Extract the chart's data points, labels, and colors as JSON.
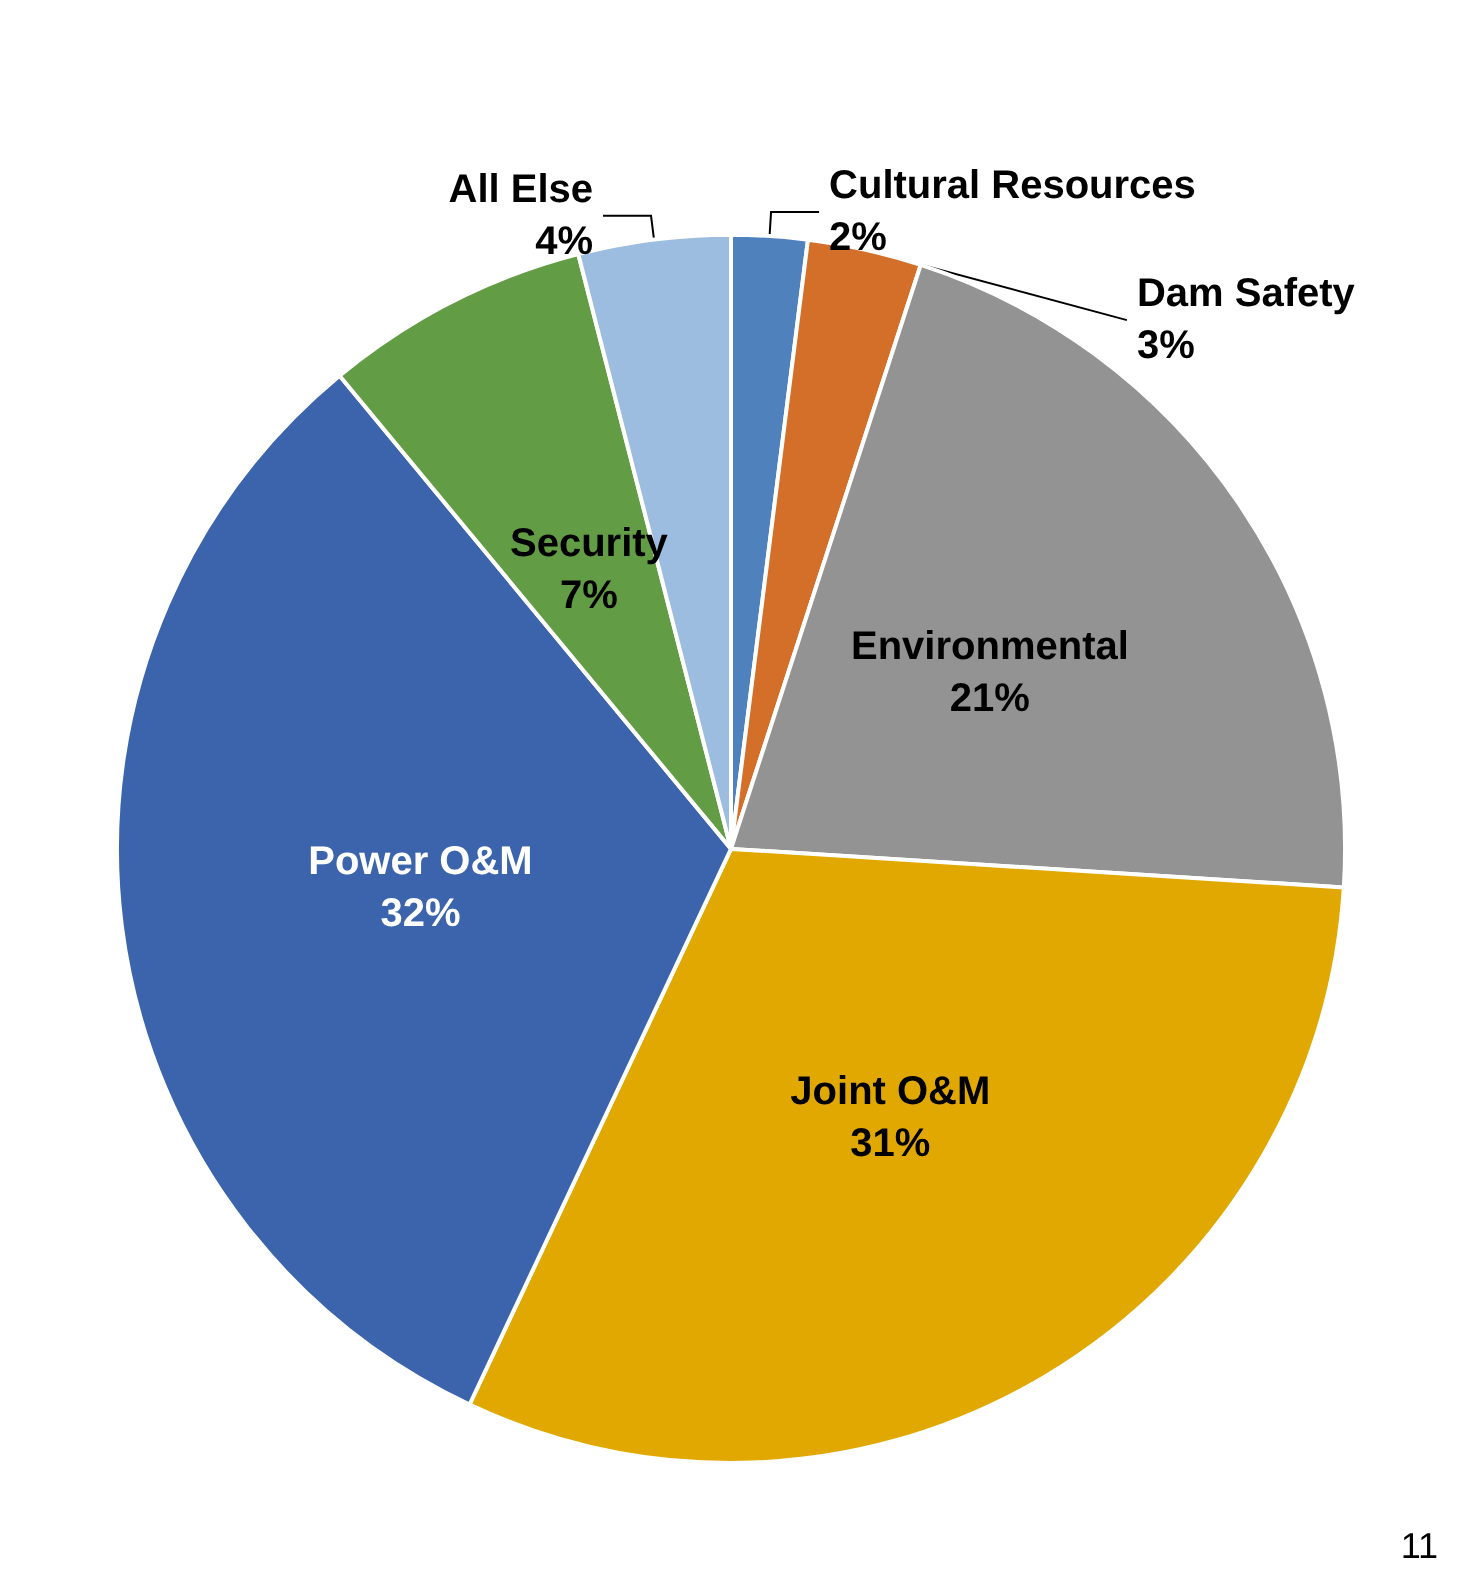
{
  "chart_data": {
    "type": "pie",
    "categories": [
      "Cultural Resources",
      "Dam Safety",
      "Environmental",
      "Joint O&M",
      "Power O&M",
      "Security",
      "All Else"
    ],
    "values": [
      2,
      3,
      21,
      31,
      32,
      7,
      4
    ],
    "value_labels": [
      "2%",
      "3%",
      "21%",
      "31%",
      "32%",
      "7%",
      "4%"
    ],
    "colors": [
      "#4f81bd",
      "#d46f2a",
      "#939393",
      "#e0a800",
      "#3c64ad",
      "#629c44",
      "#9cbce0"
    ],
    "legend": false,
    "annotations": [
      "11"
    ]
  }
}
